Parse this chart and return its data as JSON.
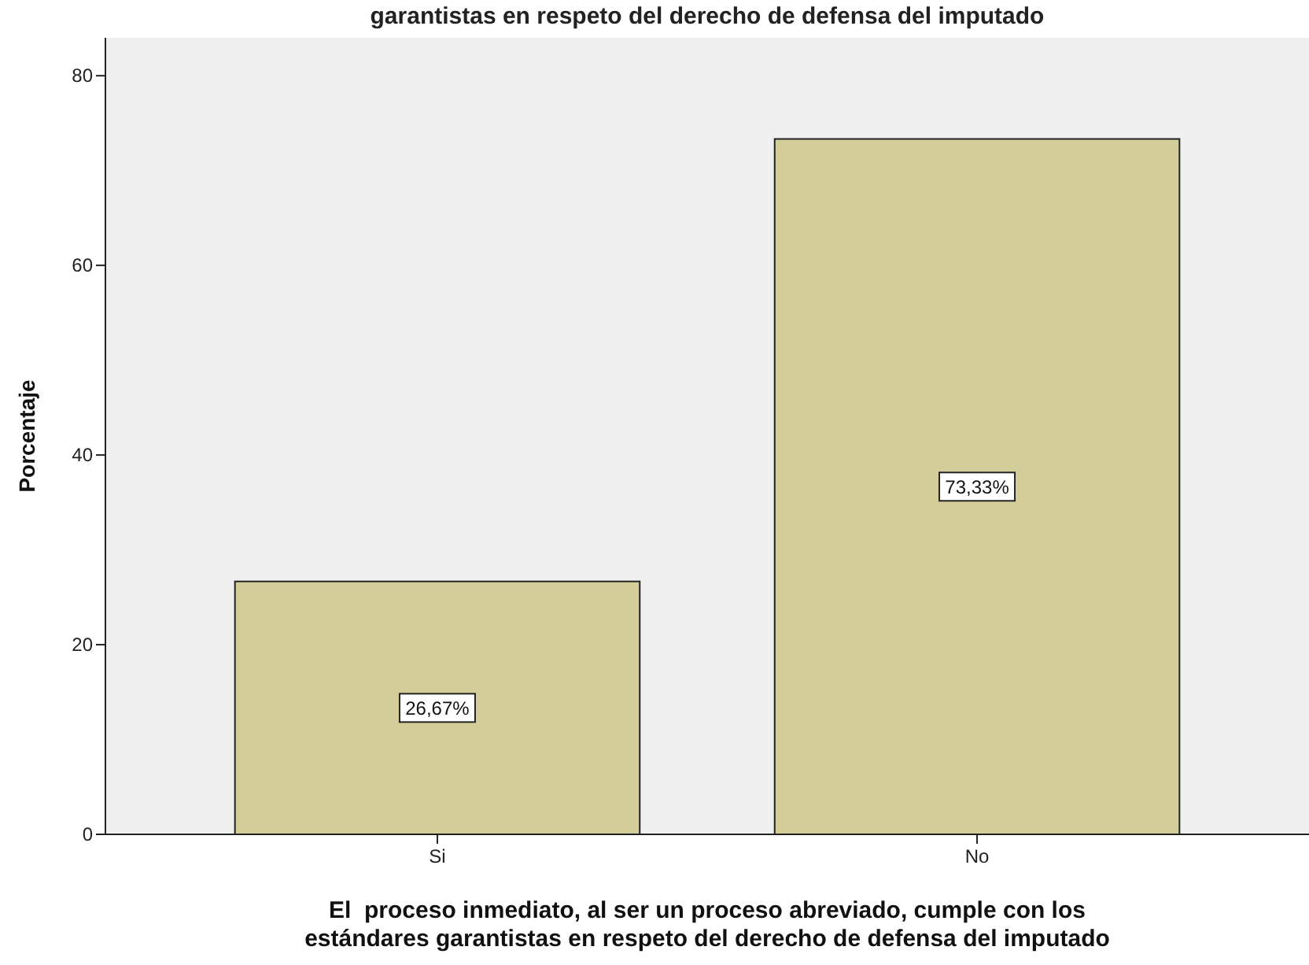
{
  "chart_data": {
    "type": "bar",
    "title": "garantistas en respeto del derecho de defensa del imputado",
    "xlabel": "El  proceso inmediato, al ser un proceso abreviado, cumple con los\nestándares garantistas en respeto del derecho de defensa del imputado",
    "ylabel": "Porcentaje",
    "categories": [
      "Si",
      "No"
    ],
    "values": [
      26.67,
      73.33
    ],
    "value_labels": [
      "26,67%",
      "73,33%"
    ],
    "color": "#d3ce99",
    "ylim": [
      0,
      84
    ],
    "yticks": [
      0,
      20,
      40,
      60,
      80
    ],
    "grid": false
  }
}
